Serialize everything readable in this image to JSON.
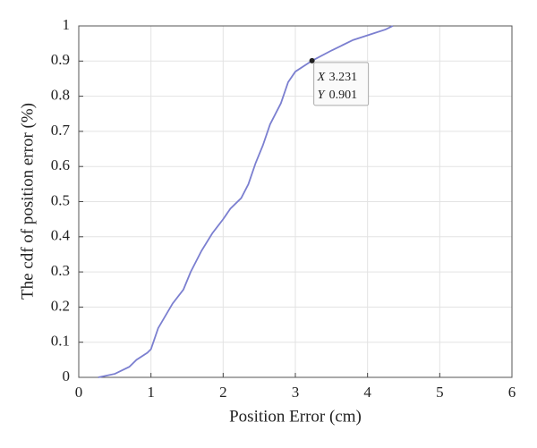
{
  "chart_data": {
    "type": "line",
    "xlabel": "Position Error (cm)",
    "ylabel": "The cdf of position error (%)",
    "x": [
      0.27,
      0.5,
      0.7,
      0.8,
      0.95,
      1.0,
      1.1,
      1.3,
      1.45,
      1.55,
      1.7,
      1.85,
      2.0,
      2.1,
      2.25,
      2.35,
      2.45,
      2.55,
      2.65,
      2.8,
      2.9,
      3.0,
      3.231,
      3.5,
      3.8,
      4.1,
      4.25,
      4.35
    ],
    "values": [
      0,
      0.01,
      0.03,
      0.05,
      0.07,
      0.08,
      0.14,
      0.21,
      0.25,
      0.3,
      0.36,
      0.41,
      0.45,
      0.48,
      0.51,
      0.55,
      0.61,
      0.66,
      0.72,
      0.78,
      0.84,
      0.87,
      0.901,
      0.93,
      0.96,
      0.98,
      0.99,
      1.0
    ],
    "color": "#7b7fd0",
    "xlim": [
      0,
      6
    ],
    "xticks": [
      0,
      1,
      2,
      3,
      4,
      5,
      6
    ],
    "ylim": [
      0,
      1
    ],
    "yticks": [
      0,
      0.1,
      0.2,
      0.3,
      0.4,
      0.5,
      0.6,
      0.7,
      0.8,
      0.9,
      1
    ],
    "grid": true,
    "datatip": {
      "x_prefix": "X",
      "x": 3.231,
      "y_prefix": "Y",
      "y": 0.901
    }
  }
}
